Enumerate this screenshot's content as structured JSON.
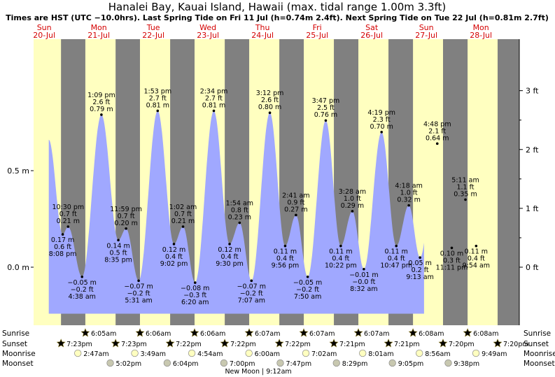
{
  "title": "Hanalei Bay, Kauai Island, Hawaii (max. tidal range 1.00m 3.3ft)",
  "subtitle": "Times are HST (UTC −10.0hrs). Last Spring Tide on Fri 11 Jul (h=0.74m 2.4ft). Next Spring Tide on Tue 22 Jul (h=0.81m 2.7ft)",
  "colors": {
    "day_bg": "#ffffc0",
    "night_bg": "#808080",
    "tide_fill": "#a0a8ff",
    "day_label": "#d40000"
  },
  "days": [
    {
      "dow": "Sun",
      "date": "20-Jul"
    },
    {
      "dow": "Mon",
      "date": "21-Jul"
    },
    {
      "dow": "Tue",
      "date": "22-Jul"
    },
    {
      "dow": "Wed",
      "date": "23-Jul"
    },
    {
      "dow": "Thu",
      "date": "24-Jul"
    },
    {
      "dow": "Fri",
      "date": "25-Jul"
    },
    {
      "dow": "Sat",
      "date": "26-Jul"
    },
    {
      "dow": "Sun",
      "date": "27-Jul"
    },
    {
      "dow": "Mon",
      "date": "28-Jul"
    }
  ],
  "chart_data": {
    "type": "area",
    "x_unit": "hours since 20-Jul 00:00 HST",
    "ylim_m": [
      -0.23,
      0.88
    ],
    "left_axis": {
      "ticks": [
        0.0,
        0.5
      ],
      "labels": [
        "0.0 m",
        "0.5 m"
      ]
    },
    "right_axis": {
      "ticks_ft": [
        0,
        1,
        2,
        3
      ],
      "labels": [
        "0 ft",
        "1 ft",
        "2 ft",
        "3 ft"
      ]
    },
    "series_start": [
      14.0,
      0.66
    ],
    "series_end": [
      179.0,
      0.36
    ],
    "extremes": [
      {
        "t": 20.133,
        "h": 0.17,
        "kind": "low",
        "lines": [
          "0.17 m",
          "0.6 ft",
          "8:08 pm"
        ]
      },
      {
        "t": 22.5,
        "h": 0.21,
        "kind": "high",
        "lines": [
          "10:30 pm",
          "0.7 ft",
          "0.21 m"
        ]
      },
      {
        "t": 28.633,
        "h": -0.05,
        "kind": "low",
        "lines": [
          "−0.05 m",
          "−0.2 ft",
          "4:38 am"
        ]
      },
      {
        "t": 37.15,
        "h": 0.79,
        "kind": "high",
        "lines": [
          "1:09 pm",
          "2.6 ft",
          "0.79 m"
        ]
      },
      {
        "t": 44.583,
        "h": 0.14,
        "kind": "low",
        "lines": [
          "0.14 m",
          "0.5 ft",
          "8:35 pm"
        ]
      },
      {
        "t": 47.983,
        "h": 0.2,
        "kind": "high",
        "lines": [
          "11:59 pm",
          "0.7 ft",
          "0.20 m"
        ]
      },
      {
        "t": 53.517,
        "h": -0.07,
        "kind": "low",
        "lines": [
          "−0.07 m",
          "−0.2 ft",
          "5:31 am"
        ]
      },
      {
        "t": 61.883,
        "h": 0.81,
        "kind": "high",
        "lines": [
          "1:53 pm",
          "2.7 ft",
          "0.81 m"
        ]
      },
      {
        "t": 69.033,
        "h": 0.12,
        "kind": "low",
        "lines": [
          "0.12 m",
          "0.4 ft",
          "9:02 pm"
        ]
      },
      {
        "t": 73.033,
        "h": 0.21,
        "kind": "high",
        "lines": [
          "1:02 am",
          "0.7 ft",
          "0.21 m"
        ]
      },
      {
        "t": 78.333,
        "h": -0.08,
        "kind": "low",
        "lines": [
          "−0.08 m",
          "−0.3 ft",
          "6:20 am"
        ]
      },
      {
        "t": 86.567,
        "h": 0.81,
        "kind": "high",
        "lines": [
          "2:34 pm",
          "2.7 ft",
          "0.81 m"
        ]
      },
      {
        "t": 93.5,
        "h": 0.12,
        "kind": "low",
        "lines": [
          "0.12 m",
          "0.4 ft",
          "9:30 pm"
        ]
      },
      {
        "t": 97.9,
        "h": 0.23,
        "kind": "high",
        "lines": [
          "1:54 am",
          "0.8 ft",
          "0.23 m"
        ]
      },
      {
        "t": 103.117,
        "h": -0.07,
        "kind": "low",
        "lines": [
          "−0.07 m",
          "−0.2 ft",
          "7:07 am"
        ]
      },
      {
        "t": 111.2,
        "h": 0.8,
        "kind": "high",
        "lines": [
          "3:12 pm",
          "2.6 ft",
          "0.80 m"
        ]
      },
      {
        "t": 117.933,
        "h": 0.11,
        "kind": "low",
        "lines": [
          "0.11 m",
          "0.4 ft",
          "9:56 pm"
        ]
      },
      {
        "t": 122.683,
        "h": 0.27,
        "kind": "high",
        "lines": [
          "2:41 am",
          "0.9 ft",
          "0.27 m"
        ]
      },
      {
        "t": 127.833,
        "h": -0.05,
        "kind": "low",
        "lines": [
          "−0.05 m",
          "−0.2 ft",
          "7:50 am"
        ]
      },
      {
        "t": 135.783,
        "h": 0.76,
        "kind": "high",
        "lines": [
          "3:47 pm",
          "2.5 ft",
          "0.76 m"
        ]
      },
      {
        "t": 142.367,
        "h": 0.11,
        "kind": "low",
        "lines": [
          "0.11 m",
          "0.4 ft",
          "10:22 pm"
        ]
      },
      {
        "t": 147.467,
        "h": 0.29,
        "kind": "high",
        "lines": [
          "3:28 am",
          "1.0 ft",
          "0.29 m"
        ]
      },
      {
        "t": 152.533,
        "h": -0.01,
        "kind": "low",
        "lines": [
          "−0.01 m",
          "−0.0 ft",
          "8:32 am"
        ]
      },
      {
        "t": 160.317,
        "h": 0.7,
        "kind": "high",
        "lines": [
          "4:19 pm",
          "2.3 ft",
          "0.70 m"
        ]
      },
      {
        "t": 166.783,
        "h": 0.11,
        "kind": "low",
        "lines": [
          "0.11 m",
          "0.4 ft",
          "10:47 pm"
        ]
      },
      {
        "t": 172.3,
        "h": 0.32,
        "kind": "high",
        "lines": [
          "4:18 am",
          "1.0 ft",
          "0.32 m"
        ]
      },
      {
        "t": 177.217,
        "h": 0.05,
        "kind": "low",
        "lines": [
          "0.05 m",
          "0.2 ft",
          "9:13 am"
        ]
      },
      {
        "t": 184.8,
        "h": 0.64,
        "kind": "high",
        "lines": [
          "4:48 pm",
          "2.1 ft",
          "0.64 m"
        ]
      },
      {
        "t": 191.183,
        "h": 0.1,
        "kind": "low",
        "lines": [
          "0.10 m",
          "0.3 ft",
          "11:11 pm"
        ]
      },
      {
        "t": 197.183,
        "h": 0.35,
        "kind": "high",
        "lines": [
          "5:11 am",
          "1.1 ft",
          "0.35 m"
        ]
      },
      {
        "t": 201.9,
        "h": 0.11,
        "kind": "low",
        "lines": [
          "0.11 m",
          "0.4 ft",
          "9:54 am"
        ]
      }
    ]
  },
  "sun_moon": {
    "row_labels": [
      "Sunrise",
      "Sunset",
      "Moonrise",
      "Moonset"
    ],
    "sunrise": [
      {
        "t": 30.083,
        "label": "6:05am"
      },
      {
        "t": 54.1,
        "label": "6:06am"
      },
      {
        "t": 78.1,
        "label": "6:06am"
      },
      {
        "t": 102.117,
        "label": "6:07am"
      },
      {
        "t": 126.117,
        "label": "6:07am"
      },
      {
        "t": 150.117,
        "label": "6:07am"
      },
      {
        "t": 174.133,
        "label": "6:08am"
      },
      {
        "t": 198.133,
        "label": "6:08am"
      }
    ],
    "sunset": [
      {
        "t": 19.383,
        "label": "7:23pm"
      },
      {
        "t": 43.383,
        "label": "7:23pm"
      },
      {
        "t": 67.367,
        "label": "7:22pm"
      },
      {
        "t": 91.367,
        "label": "7:22pm"
      },
      {
        "t": 115.367,
        "label": "7:22pm"
      },
      {
        "t": 139.35,
        "label": "7:21pm"
      },
      {
        "t": 163.35,
        "label": "7:21pm"
      },
      {
        "t": 187.333,
        "label": "7:20pm"
      },
      {
        "t": 211.333,
        "label": "7:20pm"
      }
    ],
    "moonrise": [
      {
        "t": 26.783,
        "label": "2:47am"
      },
      {
        "t": 51.817,
        "label": "3:49am"
      },
      {
        "t": 76.9,
        "label": "4:54am"
      },
      {
        "t": 102.0,
        "label": "6:00am"
      },
      {
        "t": 127.033,
        "label": "7:02am"
      },
      {
        "t": 152.017,
        "label": "8:01am"
      },
      {
        "t": 176.933,
        "label": "8:56am"
      },
      {
        "t": 201.817,
        "label": "9:49am"
      }
    ],
    "moonset": [
      {
        "t": 41.033,
        "label": "5:02pm"
      },
      {
        "t": 66.067,
        "label": "6:04pm"
      },
      {
        "t": 91.0,
        "label": "7:00pm"
      },
      {
        "t": 115.783,
        "label": "7:47pm"
      },
      {
        "t": 140.483,
        "label": "8:29pm"
      },
      {
        "t": 165.083,
        "label": "9:05pm"
      },
      {
        "t": 189.633,
        "label": "9:38pm"
      }
    ],
    "moon_phase": {
      "t": 105.2,
      "label": "New Moon | 9:12am"
    }
  }
}
